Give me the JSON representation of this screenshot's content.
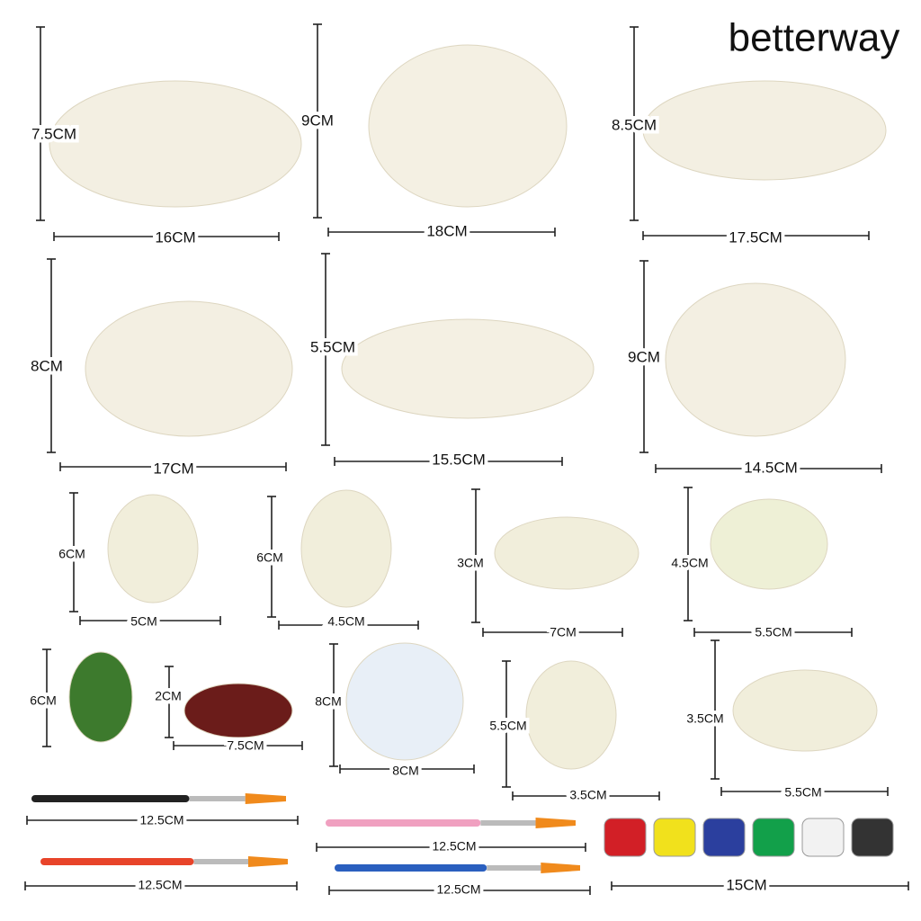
{
  "brand": "betterway",
  "items": [
    {
      "height": "7.5CM",
      "width": "16CM"
    },
    {
      "height": "9CM",
      "width": "18CM"
    },
    {
      "height": "8.5CM",
      "width": "17.5CM"
    },
    {
      "height": "8CM",
      "width": "17CM"
    },
    {
      "height": "5.5CM",
      "width": "15.5CM"
    },
    {
      "height": "9CM",
      "width": "14.5CM"
    },
    {
      "height": "6CM",
      "width": "5CM"
    },
    {
      "height": "6CM",
      "width": "4.5CM"
    },
    {
      "height": "3CM",
      "width": "7CM"
    },
    {
      "height": "4.5CM",
      "width": "5.5CM"
    },
    {
      "height": "6CM"
    },
    {
      "height": "2CM",
      "width": "7.5CM"
    },
    {
      "height": "8CM",
      "width": "8CM"
    },
    {
      "height": "5.5CM",
      "width": "3.5CM"
    },
    {
      "height": "3.5CM",
      "width": "5.5CM"
    },
    {
      "width": "12.5CM"
    },
    {
      "width": "12.5CM"
    },
    {
      "width": "12.5CM"
    },
    {
      "width": "12.5CM"
    },
    {
      "width": "15CM"
    }
  ]
}
